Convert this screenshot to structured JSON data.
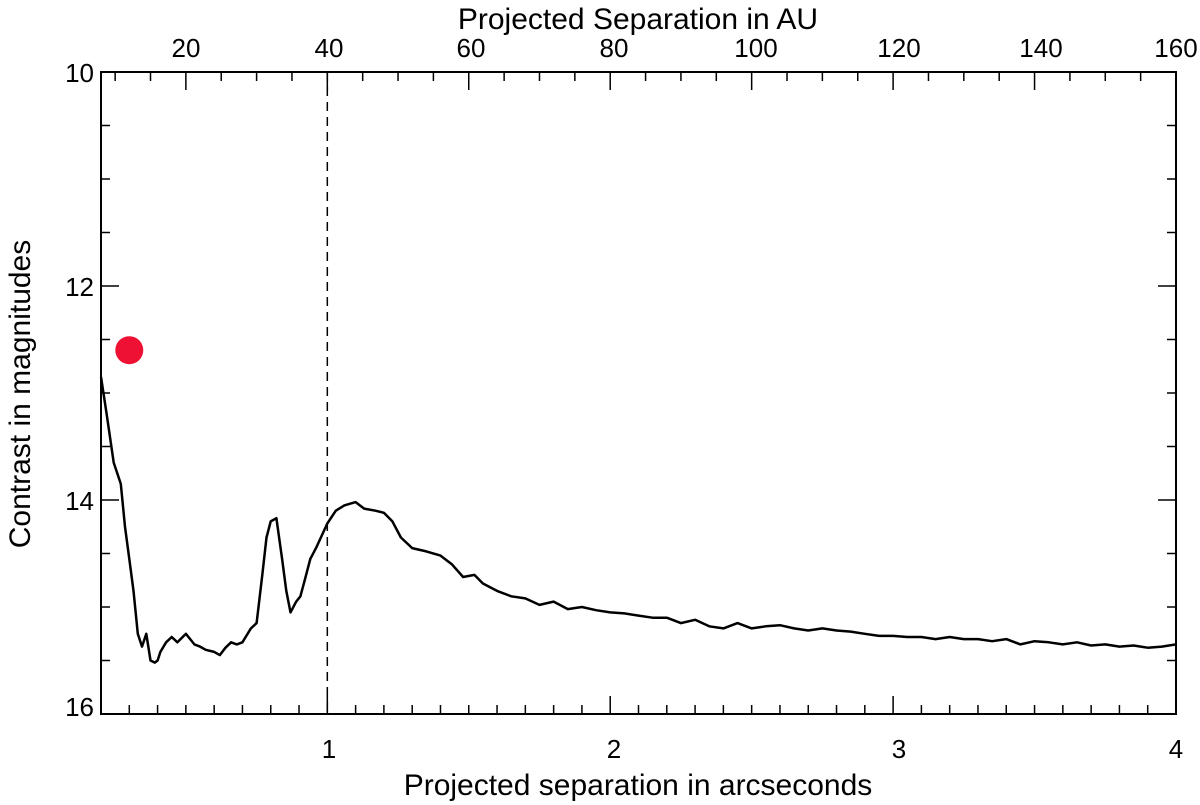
{
  "chart_data": {
    "type": "line",
    "xlabel": "Projected separation in arcseconds",
    "ylabel": "Contrast in magnitudes",
    "top_xlabel": "Projected Separation in AU",
    "xlim": [
      0.2,
      4.0
    ],
    "ylim": [
      16,
      10
    ],
    "y_inverted": true,
    "x_major_ticks": [
      1,
      2,
      3,
      4
    ],
    "x_minor_step": 0.1,
    "y_major_ticks": [
      10,
      12,
      14,
      16
    ],
    "y_minor_step": 0.5,
    "top_axis": {
      "arcsec_per_au": 0.025,
      "major_ticks": [
        20,
        40,
        60,
        80,
        100,
        120,
        140,
        160
      ],
      "minor_step": 5
    },
    "grid": false,
    "legend": "none",
    "reference_line": {
      "x": 1.0,
      "style": "dashed",
      "color": "#000000"
    },
    "series": [
      {
        "color": "#000000",
        "x": [
          0.2,
          0.22,
          0.245,
          0.27,
          0.285,
          0.3,
          0.315,
          0.33,
          0.345,
          0.36,
          0.375,
          0.39,
          0.4,
          0.41,
          0.43,
          0.45,
          0.47,
          0.5,
          0.53,
          0.55,
          0.57,
          0.6,
          0.62,
          0.64,
          0.66,
          0.68,
          0.7,
          0.73,
          0.75,
          0.77,
          0.785,
          0.8,
          0.82,
          0.84,
          0.855,
          0.87,
          0.89,
          0.905,
          0.92,
          0.94,
          0.96,
          1.0,
          1.03,
          1.06,
          1.1,
          1.13,
          1.17,
          1.2,
          1.23,
          1.26,
          1.3,
          1.35,
          1.4,
          1.44,
          1.48,
          1.52,
          1.55,
          1.6,
          1.65,
          1.7,
          1.75,
          1.8,
          1.85,
          1.9,
          1.95,
          2.0,
          2.05,
          2.1,
          2.15,
          2.2,
          2.25,
          2.3,
          2.35,
          2.4,
          2.45,
          2.5,
          2.55,
          2.6,
          2.65,
          2.7,
          2.75,
          2.8,
          2.85,
          2.9,
          2.95,
          3.0,
          3.05,
          3.1,
          3.15,
          3.2,
          3.25,
          3.3,
          3.35,
          3.4,
          3.45,
          3.5,
          3.55,
          3.6,
          3.65,
          3.7,
          3.75,
          3.8,
          3.85,
          3.9,
          3.95,
          4.0
        ],
        "y": [
          12.85,
          13.2,
          13.65,
          13.85,
          14.25,
          14.55,
          14.85,
          15.25,
          15.37,
          15.25,
          15.5,
          15.52,
          15.5,
          15.42,
          15.33,
          15.28,
          15.33,
          15.25,
          15.35,
          15.37,
          15.4,
          15.42,
          15.45,
          15.38,
          15.33,
          15.35,
          15.33,
          15.2,
          15.15,
          14.7,
          14.35,
          14.2,
          14.17,
          14.55,
          14.85,
          15.05,
          14.95,
          14.9,
          14.75,
          14.55,
          14.45,
          14.22,
          14.1,
          14.05,
          14.02,
          14.08,
          14.1,
          14.12,
          14.2,
          14.35,
          14.45,
          14.48,
          14.52,
          14.6,
          14.72,
          14.7,
          14.78,
          14.85,
          14.9,
          14.92,
          14.98,
          14.95,
          15.02,
          15.0,
          15.03,
          15.05,
          15.06,
          15.08,
          15.1,
          15.1,
          15.15,
          15.12,
          15.18,
          15.2,
          15.15,
          15.2,
          15.18,
          15.17,
          15.2,
          15.22,
          15.2,
          15.22,
          15.23,
          15.25,
          15.27,
          15.27,
          15.28,
          15.28,
          15.3,
          15.28,
          15.3,
          15.3,
          15.32,
          15.3,
          15.35,
          15.32,
          15.33,
          15.35,
          15.33,
          15.36,
          15.35,
          15.37,
          15.36,
          15.38,
          15.37,
          15.35
        ]
      }
    ],
    "marker_points": [
      {
        "x": 0.3,
        "y": 12.6,
        "color": "#ee1133"
      }
    ],
    "top_tick_labels": [
      "20",
      "40",
      "60",
      "80",
      "100",
      "120",
      "140",
      "160"
    ],
    "bottom_tick_labels": [
      "1",
      "2",
      "3",
      "4"
    ],
    "left_tick_labels": [
      "10",
      "12",
      "14",
      "16"
    ]
  }
}
